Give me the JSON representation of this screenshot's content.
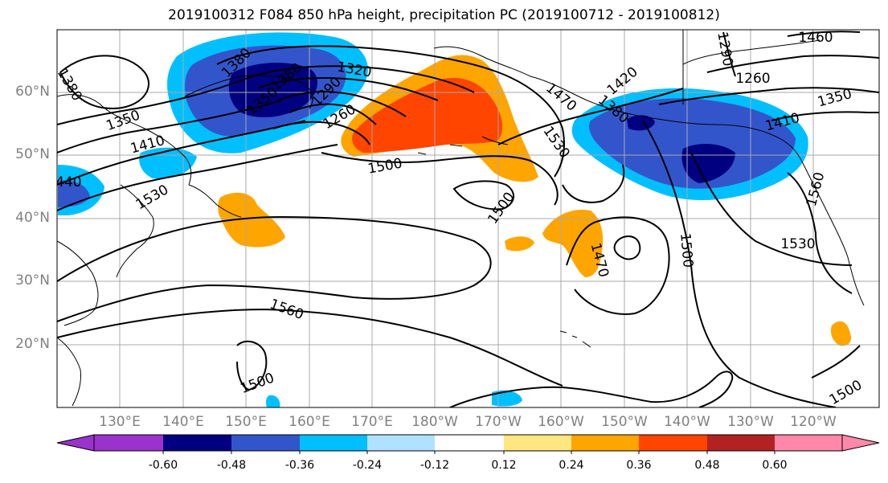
{
  "title": "2019100312 F084 850 hPa height, precipitation PC (2019100712 - 2019100812)",
  "lon_labels": [
    "130°E",
    "140°E",
    "150°E",
    "160°E",
    "170°E",
    "180°W",
    "170°W",
    "160°W",
    "150°W",
    "140°W",
    "130°W",
    "120°W"
  ],
  "lat_labels": [
    "60°N",
    "50°N",
    "40°N",
    "30°N",
    "20°N"
  ],
  "contour_labels": [
    "1380",
    "1380",
    "1350",
    "1410",
    "1530",
    "1440",
    "1380",
    "1320",
    "1350",
    "1290",
    "1260",
    "1500",
    "1470",
    "1530",
    "1500",
    "1470",
    "1500",
    "1530",
    "1560",
    "1500",
    "1500",
    "1420",
    "1380",
    "1290",
    "1260",
    "1350",
    "1410",
    "1560",
    "1460"
  ],
  "colorbar": {
    "colors": [
      "#9933cc",
      "#000080",
      "#3355cc",
      "#00bfff",
      "#b0e2ff",
      "#ffffff",
      "#ffffff",
      "#ffe680",
      "#ffa500",
      "#ff4500",
      "#b22222",
      "#ff88aa"
    ],
    "tick_labels": [
      "-0.60",
      "-0.48",
      "-0.36",
      "-0.24",
      "-0.12",
      "0.12",
      "0.24",
      "0.36",
      "0.48",
      "0.60"
    ]
  }
}
